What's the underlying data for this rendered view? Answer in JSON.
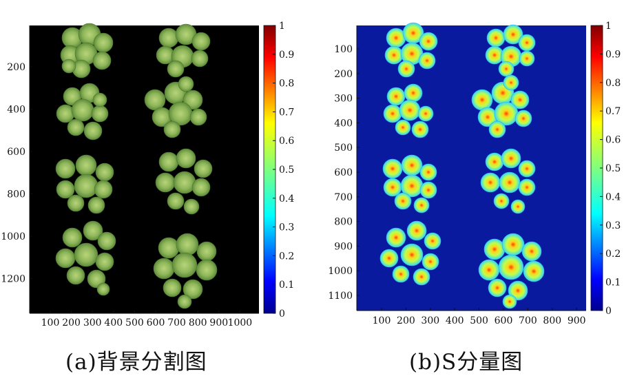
{
  "panel_a": {
    "caption": "(a)背景分割图",
    "x_ticks": [
      "100",
      "200",
      "300",
      "400",
      "500",
      "600",
      "700",
      "800",
      "900",
      "1000"
    ],
    "y_ticks": [
      "200",
      "400",
      "600",
      "800",
      "1000",
      "1200"
    ],
    "colorbar_ticks": [
      "1",
      "0.9",
      "0.8",
      "0.7",
      "0.6",
      "0.5",
      "0.4",
      "0.3",
      "0.2",
      "0.1",
      "0"
    ]
  },
  "panel_b": {
    "caption": "(b)S分量图",
    "x_ticks": [
      "100",
      "200",
      "300",
      "400",
      "500",
      "600",
      "700",
      "800",
      "900"
    ],
    "y_ticks": [
      "100",
      "200",
      "300",
      "400",
      "500",
      "600",
      "700",
      "800",
      "900",
      "1000",
      "1100"
    ],
    "colorbar_ticks": [
      "1",
      "0.9",
      "0.8",
      "0.7",
      "0.6",
      "0.5",
      "0.4",
      "0.3",
      "0.2",
      "0.1",
      "0"
    ]
  },
  "colors": {
    "background_black": "#000000",
    "jet_background": "#0a1a9e",
    "leaf_green": "#7aa84f"
  },
  "colorbar": {
    "scale": "jet",
    "range": [
      0,
      1
    ]
  }
}
